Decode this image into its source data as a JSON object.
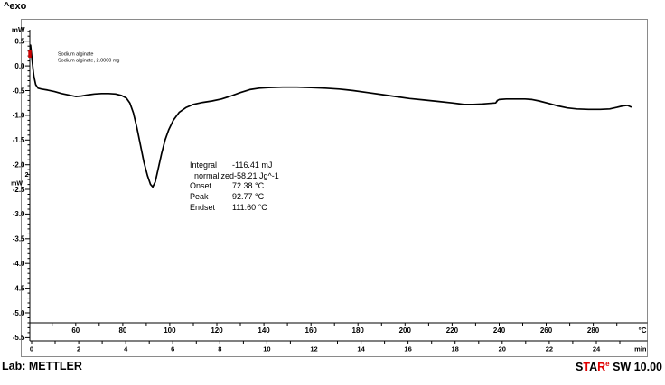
{
  "header": {
    "exo_label": "^exo"
  },
  "chart_data": {
    "type": "line",
    "title": "",
    "sample_labels": [
      "Sodium alginate",
      "Sodium alginate, 2.0000 mg"
    ],
    "results": [
      {
        "label": "Integral",
        "value": "-116.41 mJ"
      },
      {
        "label": "  normalized",
        "value": "-58.21 Jg^-1"
      },
      {
        "label": "Onset",
        "value": "72.38 °C"
      },
      {
        "label": "Peak",
        "value": "92.77 °C"
      },
      {
        "label": "Endset",
        "value": "111.60 °C"
      }
    ],
    "y_axis": {
      "unit": "mW",
      "tick_labels": [
        "0.5",
        "0.0",
        "-0.5",
        "-1.0",
        "-1.5",
        "-2.0",
        "-2.5",
        "-3.0",
        "-3.5",
        "-4.0",
        "-4.5",
        "-5.0",
        "-5.5"
      ],
      "minor_step": 0.1,
      "range": [
        0.73,
        -5.57
      ]
    },
    "temp_axis": {
      "unit": "°C",
      "tick_labels": [
        60,
        80,
        100,
        120,
        140,
        160,
        180,
        200,
        220,
        240,
        260,
        280
      ],
      "minor_step": 10,
      "range": [
        40.5,
        300.5
      ]
    },
    "time_axis": {
      "unit": "min",
      "tick_labels": [
        0,
        2,
        4,
        6,
        8,
        10,
        12,
        14,
        16,
        18,
        20,
        22,
        24
      ],
      "minor_step": 1,
      "range": [
        0,
        25.9
      ]
    },
    "scale_indicator": {
      "value": "2",
      "unit": "mW"
    },
    "start_marker": {
      "temp": 41.0,
      "value": 0.24,
      "color": "#cc0000"
    },
    "series": [
      {
        "name": "Sodium alginate",
        "color": "#000000",
        "points": [
          [
            40.8,
            0.42
          ],
          [
            41.2,
            0.25
          ],
          [
            41.6,
            0.05
          ],
          [
            42.2,
            -0.2
          ],
          [
            43.0,
            -0.38
          ],
          [
            44.0,
            -0.45
          ],
          [
            45.5,
            -0.47
          ],
          [
            48,
            -0.49
          ],
          [
            51,
            -0.52
          ],
          [
            54,
            -0.56
          ],
          [
            57,
            -0.59
          ],
          [
            60,
            -0.62
          ],
          [
            62.5,
            -0.61
          ],
          [
            65,
            -0.59
          ],
          [
            68,
            -0.57
          ],
          [
            71,
            -0.56
          ],
          [
            74,
            -0.56
          ],
          [
            77,
            -0.57
          ],
          [
            79.5,
            -0.6
          ],
          [
            81.5,
            -0.65
          ],
          [
            83,
            -0.75
          ],
          [
            84.5,
            -0.95
          ],
          [
            86,
            -1.25
          ],
          [
            87.5,
            -1.6
          ],
          [
            89,
            -1.95
          ],
          [
            90.5,
            -2.22
          ],
          [
            91.8,
            -2.4
          ],
          [
            92.77,
            -2.45
          ],
          [
            93.8,
            -2.35
          ],
          [
            95,
            -2.1
          ],
          [
            96.5,
            -1.78
          ],
          [
            98,
            -1.5
          ],
          [
            99.5,
            -1.3
          ],
          [
            101.5,
            -1.1
          ],
          [
            104,
            -0.94
          ],
          [
            107,
            -0.84
          ],
          [
            110,
            -0.78
          ],
          [
            114,
            -0.74
          ],
          [
            118,
            -0.71
          ],
          [
            122,
            -0.67
          ],
          [
            126,
            -0.61
          ],
          [
            130,
            -0.54
          ],
          [
            134,
            -0.48
          ],
          [
            138,
            -0.45
          ],
          [
            142,
            -0.44
          ],
          [
            148,
            -0.43
          ],
          [
            154,
            -0.43
          ],
          [
            160,
            -0.44
          ],
          [
            166,
            -0.45
          ],
          [
            172,
            -0.47
          ],
          [
            178,
            -0.5
          ],
          [
            184,
            -0.54
          ],
          [
            190,
            -0.58
          ],
          [
            196,
            -0.62
          ],
          [
            202,
            -0.66
          ],
          [
            208,
            -0.69
          ],
          [
            214,
            -0.72
          ],
          [
            220,
            -0.75
          ],
          [
            225,
            -0.78
          ],
          [
            229,
            -0.78
          ],
          [
            233,
            -0.77
          ],
          [
            236,
            -0.76
          ],
          [
            238.5,
            -0.75
          ],
          [
            239.3,
            -0.7
          ],
          [
            240,
            -0.68
          ],
          [
            243,
            -0.67
          ],
          [
            247,
            -0.67
          ],
          [
            251,
            -0.67
          ],
          [
            254,
            -0.68
          ],
          [
            257,
            -0.71
          ],
          [
            261,
            -0.76
          ],
          [
            265,
            -0.81
          ],
          [
            269,
            -0.85
          ],
          [
            273,
            -0.87
          ],
          [
            278,
            -0.88
          ],
          [
            283,
            -0.88
          ],
          [
            287,
            -0.87
          ],
          [
            290,
            -0.84
          ],
          [
            292.5,
            -0.81
          ],
          [
            294.5,
            -0.8
          ],
          [
            296,
            -0.83
          ]
        ]
      }
    ]
  },
  "footer": {
    "lab": "Lab: METTLER",
    "star": {
      "s": "S",
      "t": "T",
      "a": "A",
      "r": "R",
      "e": "e",
      "rest": " SW 10.00"
    },
    "accent_red": "#e00000"
  }
}
